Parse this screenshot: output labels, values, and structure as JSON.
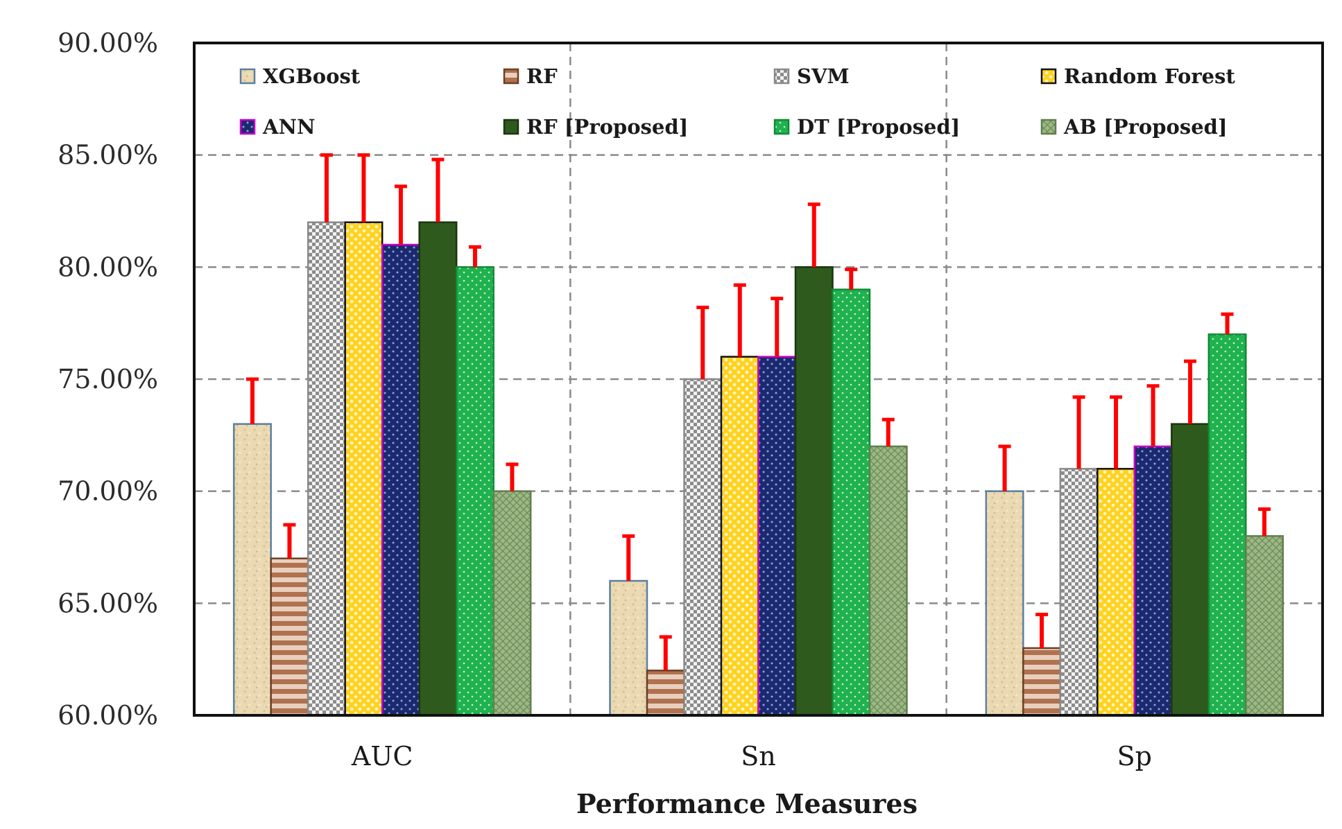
{
  "chart_data": {
    "type": "bar",
    "title": "",
    "xlabel": "Performance Measures",
    "ylabel": "",
    "ylim": [
      60,
      90
    ],
    "yticks": [
      "60.00%",
      "65.00%",
      "70.00%",
      "75.00%",
      "80.00%",
      "85.00%",
      "90.00%"
    ],
    "categories": [
      "AUC",
      "Sn",
      "Sp"
    ],
    "grid": true,
    "legend_position": "top-inside",
    "series": [
      {
        "name": "XGBoost",
        "values": [
          73,
          66,
          70
        ],
        "errors": [
          2,
          2,
          2
        ],
        "color": "#e8d9b0",
        "edge": "#5a7fa0",
        "pattern": "sand"
      },
      {
        "name": "RF",
        "values": [
          67,
          62,
          63
        ],
        "errors": [
          1.5,
          1.5,
          1.5
        ],
        "color": "#b07050",
        "edge": "#6b3f26",
        "pattern": "hstripe"
      },
      {
        "name": "SVM",
        "values": [
          82,
          75,
          71
        ],
        "errors": [
          3,
          3.2,
          3.2
        ],
        "color": "#bdbdbd",
        "edge": "#8a8a8a",
        "pattern": "checker"
      },
      {
        "name": "Random Forest",
        "values": [
          82,
          76,
          71
        ],
        "errors": [
          3,
          3.2,
          3.2
        ],
        "color": "#ffd21f",
        "edge": "#111111",
        "pattern": "yellowdot"
      },
      {
        "name": "ANN",
        "values": [
          81,
          76,
          72
        ],
        "errors": [
          2.6,
          2.6,
          2.7
        ],
        "color": "#1b2a6e",
        "edge": "#c800c8",
        "pattern": "navydot"
      },
      {
        "name": "RF [Proposed]",
        "values": [
          82,
          80,
          73
        ],
        "errors": [
          2.8,
          2.8,
          2.8
        ],
        "color": "#2e5a1c",
        "edge": "#1a3510",
        "pattern": "solid"
      },
      {
        "name": "DT [Proposed]",
        "values": [
          80,
          79,
          77
        ],
        "errors": [
          0.9,
          0.9,
          0.9
        ],
        "color": "#1fb24e",
        "edge": "#128a38",
        "pattern": "greendot"
      },
      {
        "name": "AB [Proposed]",
        "values": [
          70,
          72,
          68
        ],
        "errors": [
          1.2,
          1.2,
          1.2
        ],
        "color": "#8fb07a",
        "edge": "#5f7f4c",
        "pattern": "crosshatch"
      }
    ]
  }
}
